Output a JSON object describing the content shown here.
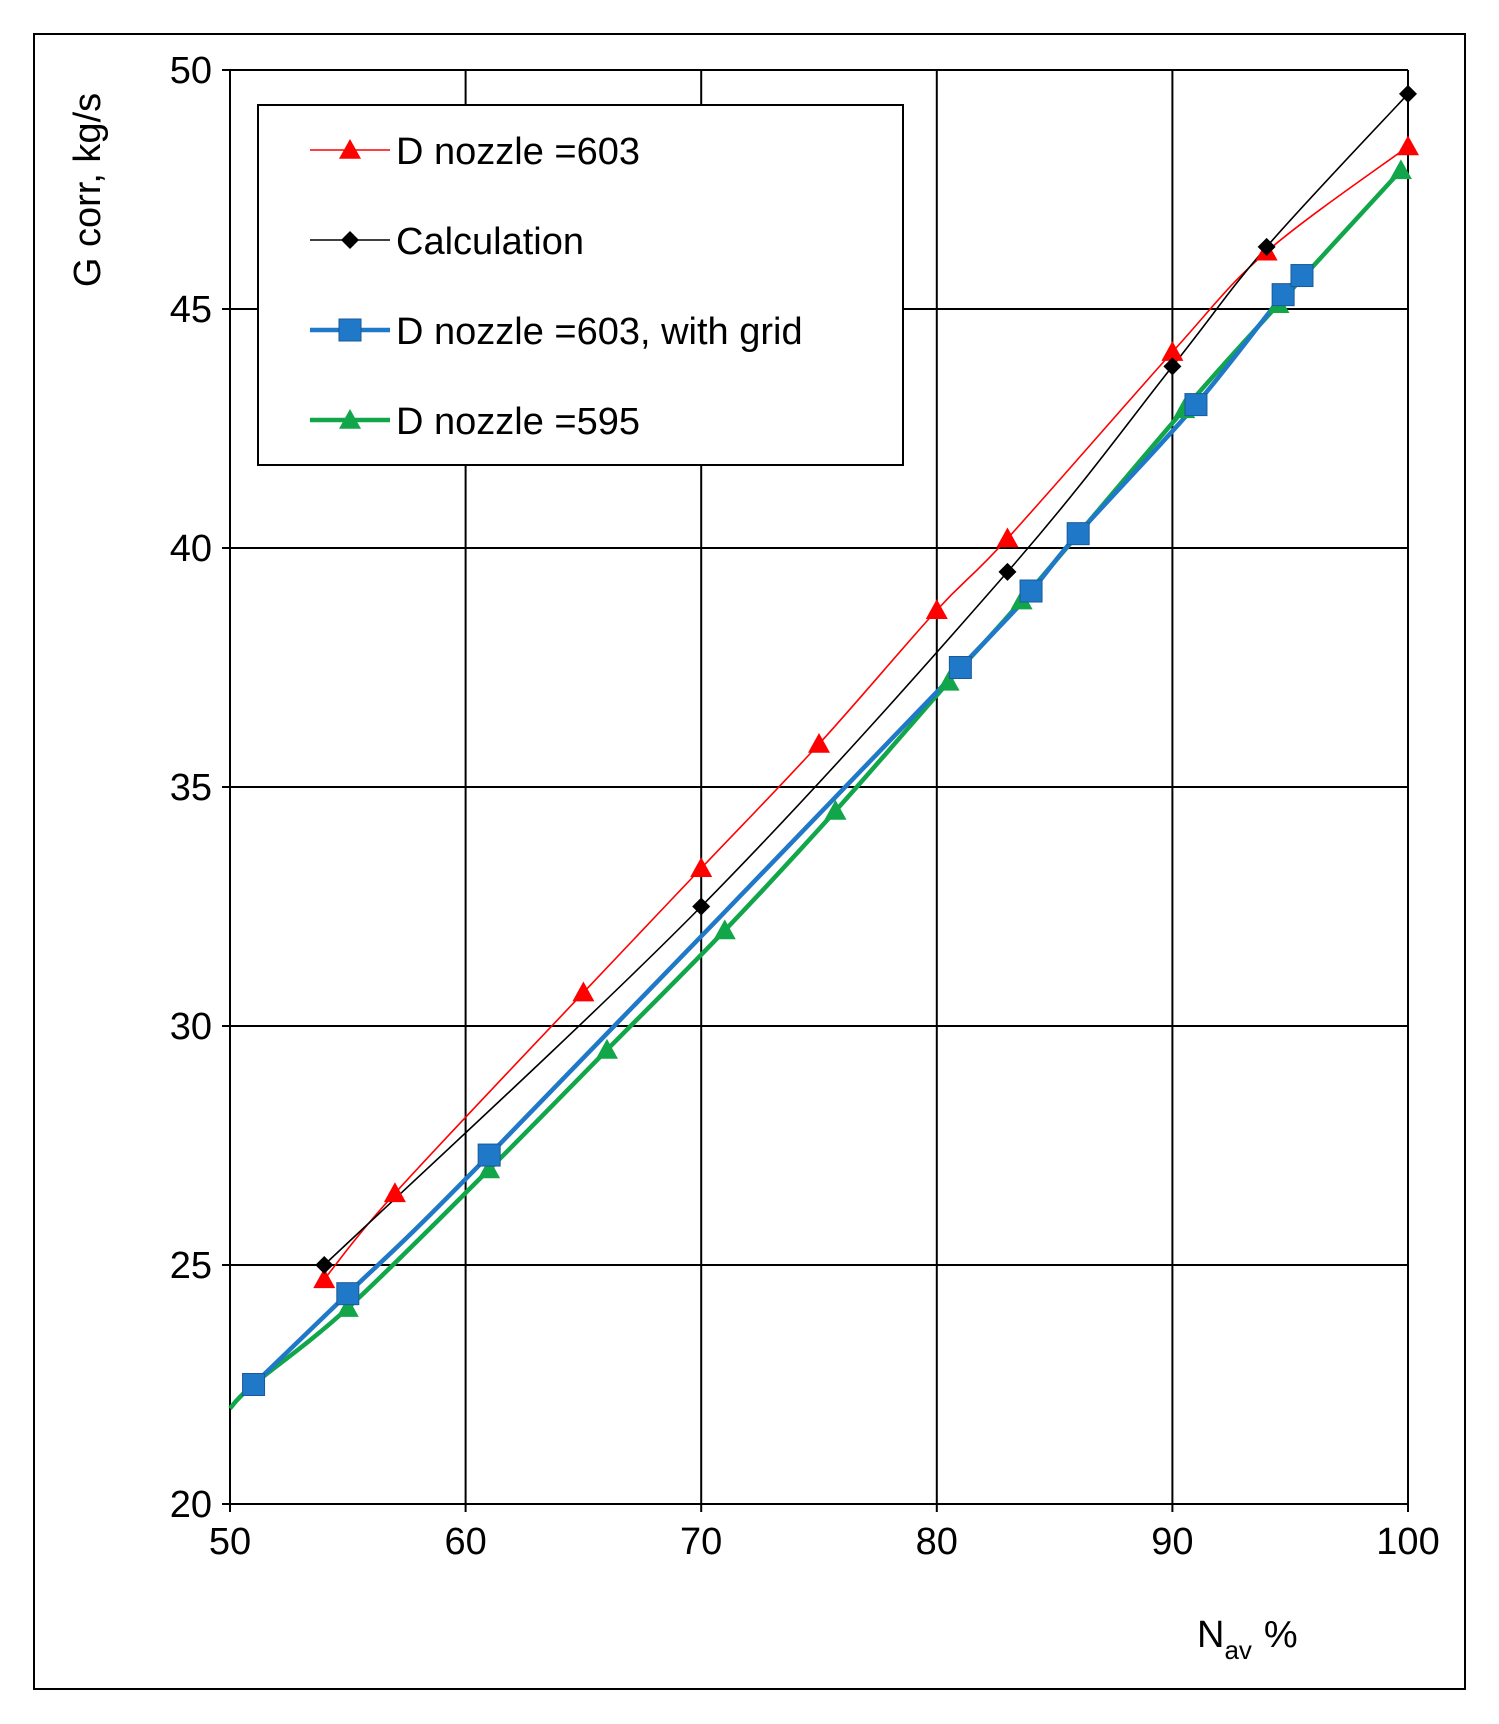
{
  "chart_data": {
    "type": "line",
    "title": "",
    "ylabel": "G corr, kg/s",
    "xlabel": {
      "main": "N",
      "sub": "av",
      "unit": "%"
    },
    "xlim": [
      50,
      100
    ],
    "ylim": [
      20,
      50
    ],
    "xticks": [
      "50",
      "60",
      "70",
      "80",
      "90",
      "100"
    ],
    "yticks": [
      "20",
      "25",
      "30",
      "35",
      "40",
      "45",
      "50"
    ],
    "grid": true,
    "legend_position": "top-left",
    "series": [
      {
        "name": "D nozzle =603",
        "color": "#ff0000",
        "marker": "triangle",
        "line_weight": "thin",
        "x": [
          54,
          57,
          65,
          70,
          75,
          80,
          83,
          90,
          94,
          100
        ],
        "y": [
          24.7,
          26.5,
          30.7,
          33.3,
          35.9,
          38.7,
          40.2,
          44.1,
          46.2,
          48.4
        ]
      },
      {
        "name": "Calculation",
        "color": "#000000",
        "marker": "diamond",
        "line_weight": "thin",
        "x": [
          54,
          70,
          83,
          90,
          94,
          100
        ],
        "y": [
          25.0,
          32.5,
          39.5,
          43.8,
          46.3,
          49.5
        ]
      },
      {
        "name": "D nozzle =603, with grid",
        "color": "#1f78c8",
        "marker": "square",
        "line_weight": "thick",
        "x": [
          51,
          55,
          61,
          81,
          84,
          86,
          91,
          94.7,
          95.5
        ],
        "y": [
          22.5,
          24.4,
          27.3,
          37.5,
          39.1,
          40.3,
          43.0,
          45.3,
          45.7
        ]
      },
      {
        "name": "D nozzle =595",
        "color": "#12a64a",
        "marker": "triangle",
        "line_weight": "thick",
        "x": [
          50,
          51,
          55,
          61,
          66,
          71,
          75.7,
          80.5,
          83.6,
          90.5,
          94.5,
          99.7
        ],
        "y": [
          22.0,
          22.5,
          24.1,
          27.0,
          29.5,
          32.0,
          34.5,
          37.2,
          38.9,
          42.9,
          45.1,
          47.9
        ]
      }
    ]
  }
}
